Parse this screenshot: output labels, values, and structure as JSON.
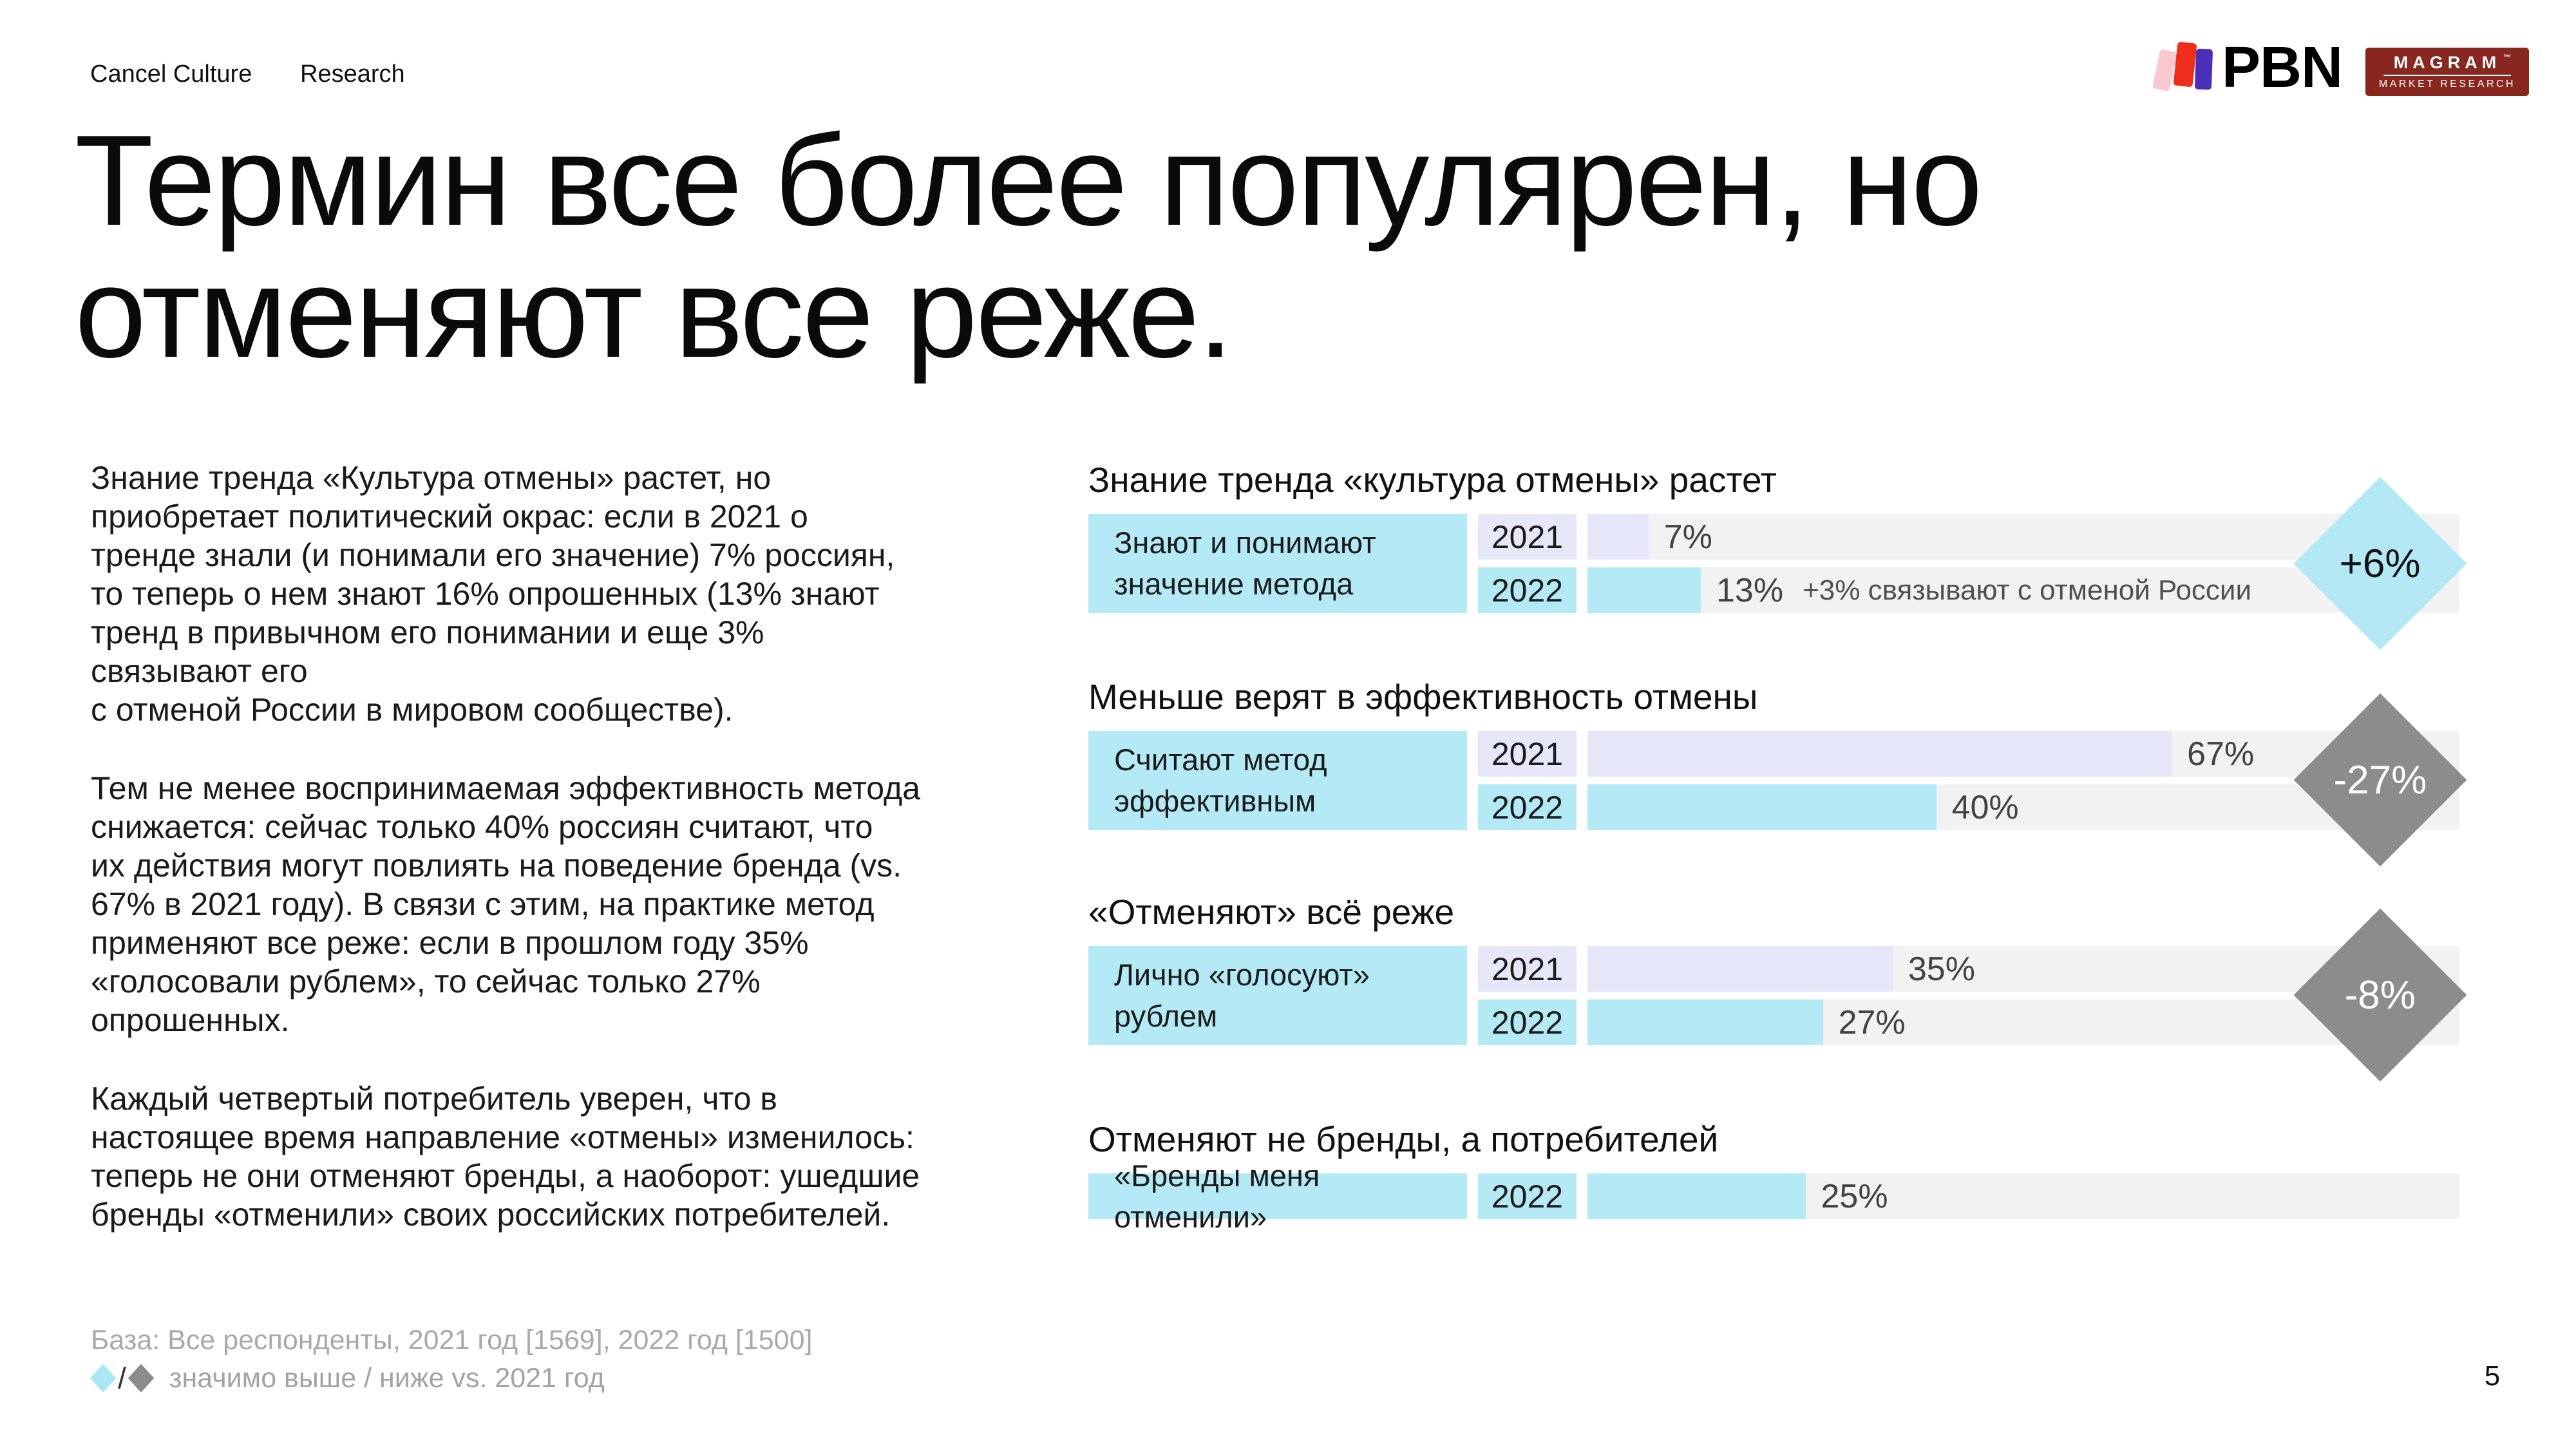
{
  "nav": {
    "brand": "Cancel Culture",
    "section": "Research"
  },
  "logos": {
    "pbn_wordmark": "PBN",
    "magram_title": "MAGRAM",
    "magram_tm": "™",
    "magram_subtitle": "MARKET RESEARCH"
  },
  "title": {
    "text": "Термин все более популярен, но\nотменяют все реже."
  },
  "left_column": {
    "paragraphs": [
      "Знание тренда «Культура отмены» растет, но\nприобретает политический окрас: если в 2021 о\nтренде знали (и понимали его значение) 7% россиян,\nто теперь о нем знают 16% опрошенных (13% знают\nтренд в привычном его понимании и еще 3%\nсвязывают его\nс отменой России в мировом сообществе).",
      "Тем не менее воспринимаемая эффективность метода\nснижается: сейчас только 40% россиян считают, что\nих действия могут повлиять на поведение бренда (vs.\n67% в 2021 году). В связи с этим, на практике метод\nприменяют все реже: если в прошлом году 35%\n«голосовали рублем», то сейчас только 27%\nопрошенных.",
      "Каждый четвертый потребитель уверен, что в\nнастоящее время направление «отмены» изменилось:\nтеперь не они отменяют бренды, а наоборот: ушедшие\nбренды «отменили» своих российских потребителей."
    ]
  },
  "colors": {
    "cyan": "#b4eaf5",
    "lavender": "#e6e7f8",
    "track": "#f2f2f2",
    "diamond_up_bg": "#b4e8f4",
    "diamond_up_text": "#111111",
    "diamond_down_bg": "#8c8c8c",
    "diamond_down_text": "#ffffff",
    "legend_up": "#abe6f5",
    "legend_down": "#8c8c8c",
    "magram_red": "#87271f",
    "pbn_pink": "#f9c9d2",
    "pbn_red": "#ee2d1a",
    "pbn_purple": "#4b2fb8"
  },
  "charts": [
    {
      "title": "Знание тренда «культура отмены» растет",
      "label": "Знают и понимают\nзначение метода",
      "rows": [
        {
          "year": "2021",
          "value": 7,
          "value_label": "7%"
        },
        {
          "year": "2022",
          "value": 13,
          "value_label": "13%",
          "note": "+3% связывают с отменой России"
        }
      ],
      "badge": {
        "label": "+6%"
      }
    },
    {
      "title": "Меньше верят в эффективность отмены",
      "label": "Считают метод\nэффективным",
      "rows": [
        {
          "year": "2021",
          "value": 67,
          "value_label": "67%"
        },
        {
          "year": "2022",
          "value": 40,
          "value_label": "40%"
        }
      ],
      "badge": {
        "label": "-27%"
      }
    },
    {
      "title": "«Отменяют» всё реже",
      "label": "Лично «голосуют»\nрублем",
      "rows": [
        {
          "year": "2021",
          "value": 35,
          "value_label": "35%"
        },
        {
          "year": "2022",
          "value": 27,
          "value_label": "27%"
        }
      ],
      "badge": {
        "label": "-8%"
      }
    },
    {
      "title": "Отменяют не бренды, а потребителей",
      "label": "«Бренды меня отменили»",
      "rows": [
        {
          "year": "2022",
          "value": 25,
          "value_label": "25%"
        }
      ]
    }
  ],
  "chart_data": [
    {
      "type": "bar",
      "title": "Знание тренда «культура отмены» растет",
      "metric": "Знают и понимают значение метода",
      "categories": [
        "2021",
        "2022"
      ],
      "values": [
        7,
        13
      ],
      "annotation_2022": "+3% связывают с отменой России",
      "change_vs_2021": "+6%",
      "xlim": [
        0,
        100
      ],
      "legend_position": "none"
    },
    {
      "type": "bar",
      "title": "Меньше верят в эффективность отмены",
      "metric": "Считают метод эффективным",
      "categories": [
        "2021",
        "2022"
      ],
      "values": [
        67,
        40
      ],
      "change_vs_2021": "-27%",
      "xlim": [
        0,
        100
      ],
      "legend_position": "none"
    },
    {
      "type": "bar",
      "title": "«Отменяют» всё реже",
      "metric": "Лично «голосуют» рублем",
      "categories": [
        "2021",
        "2022"
      ],
      "values": [
        35,
        27
      ],
      "change_vs_2021": "-8%",
      "xlim": [
        0,
        100
      ],
      "legend_position": "none"
    },
    {
      "type": "bar",
      "title": "Отменяют не бренды, а потребителей",
      "metric": "«Бренды меня отменили»",
      "categories": [
        "2022"
      ],
      "values": [
        25
      ],
      "xlim": [
        0,
        100
      ],
      "legend_position": "none"
    }
  ],
  "footer": {
    "base_note": "База: Все респонденты, 2021 год [1569], 2022 год [1500]",
    "legend_slash": "/",
    "legend_text": "значимо выше / ниже vs. 2021 год"
  },
  "page_number": "5"
}
